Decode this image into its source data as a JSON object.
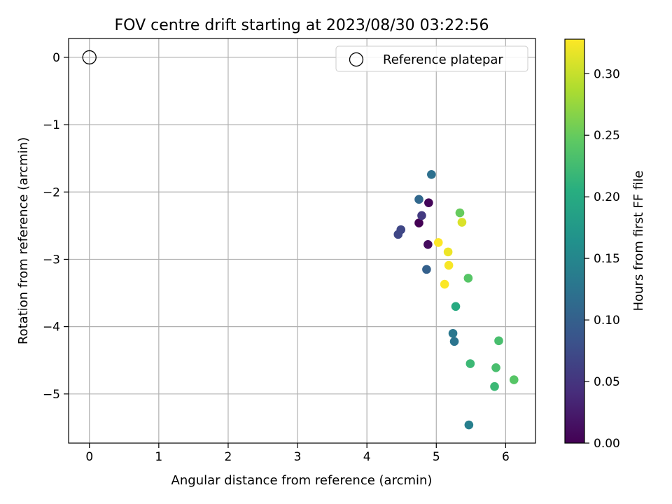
{
  "chart_data": {
    "type": "scatter",
    "title": "FOV centre drift starting at 2023/08/30 03:22:56",
    "xlabel": "Angular distance from reference (arcmin)",
    "ylabel": "Rotation from reference (arcmin)",
    "colorbar_label": "Hours from first FF file",
    "xlim": [
      -0.3,
      6.43
    ],
    "ylim": [
      -5.73,
      0.28
    ],
    "x_ticks": [
      0,
      1,
      2,
      3,
      4,
      5,
      6
    ],
    "y_ticks": [
      0,
      -1,
      -2,
      -3,
      -4,
      -5
    ],
    "x_tick_labels": [
      "0",
      "1",
      "2",
      "3",
      "4",
      "5",
      "6"
    ],
    "y_tick_labels": [
      "0",
      "−1",
      "−2",
      "−3",
      "−4",
      "−5"
    ],
    "colorbar_range": [
      0.0,
      0.328
    ],
    "colorbar_ticks": [
      0.0,
      0.05,
      0.1,
      0.15,
      0.2,
      0.25,
      0.3
    ],
    "colorbar_tick_labels": [
      "0.00",
      "0.05",
      "0.10",
      "0.15",
      "0.20",
      "0.25",
      "0.30"
    ],
    "colormap": "viridis",
    "grid": true,
    "legend": {
      "position": "top-right",
      "entries": [
        "Reference platepar"
      ]
    },
    "reference_point": {
      "x": 0,
      "y": 0
    },
    "series": [
      {
        "points": [
          {
            "x": 4.75,
            "y": -2.46,
            "c": 0.0
          },
          {
            "x": 4.89,
            "y": -2.16,
            "c": 0.005
          },
          {
            "x": 4.88,
            "y": -2.78,
            "c": 0.01
          },
          {
            "x": 4.79,
            "y": -2.35,
            "c": 0.055
          },
          {
            "x": 4.45,
            "y": -2.63,
            "c": 0.07
          },
          {
            "x": 4.49,
            "y": -2.56,
            "c": 0.07
          },
          {
            "x": 4.86,
            "y": -3.15,
            "c": 0.1
          },
          {
            "x": 4.75,
            "y": -2.11,
            "c": 0.11
          },
          {
            "x": 4.93,
            "y": -1.74,
            "c": 0.12
          },
          {
            "x": 5.24,
            "y": -4.1,
            "c": 0.13
          },
          {
            "x": 5.26,
            "y": -4.22,
            "c": 0.125
          },
          {
            "x": 5.47,
            "y": -5.46,
            "c": 0.14
          },
          {
            "x": 5.28,
            "y": -3.7,
            "c": 0.2
          },
          {
            "x": 5.84,
            "y": -4.89,
            "c": 0.22
          },
          {
            "x": 5.49,
            "y": -4.55,
            "c": 0.22
          },
          {
            "x": 5.9,
            "y": -4.21,
            "c": 0.23
          },
          {
            "x": 5.86,
            "y": -4.61,
            "c": 0.23
          },
          {
            "x": 6.12,
            "y": -4.79,
            "c": 0.24
          },
          {
            "x": 5.46,
            "y": -3.28,
            "c": 0.24
          },
          {
            "x": 5.34,
            "y": -2.31,
            "c": 0.25
          },
          {
            "x": 5.37,
            "y": -2.45,
            "c": 0.31
          },
          {
            "x": 5.17,
            "y": -2.89,
            "c": 0.32
          },
          {
            "x": 5.18,
            "y": -3.09,
            "c": 0.325
          },
          {
            "x": 5.12,
            "y": -3.37,
            "c": 0.327
          },
          {
            "x": 5.03,
            "y": -2.75,
            "c": 0.328
          }
        ]
      }
    ]
  }
}
